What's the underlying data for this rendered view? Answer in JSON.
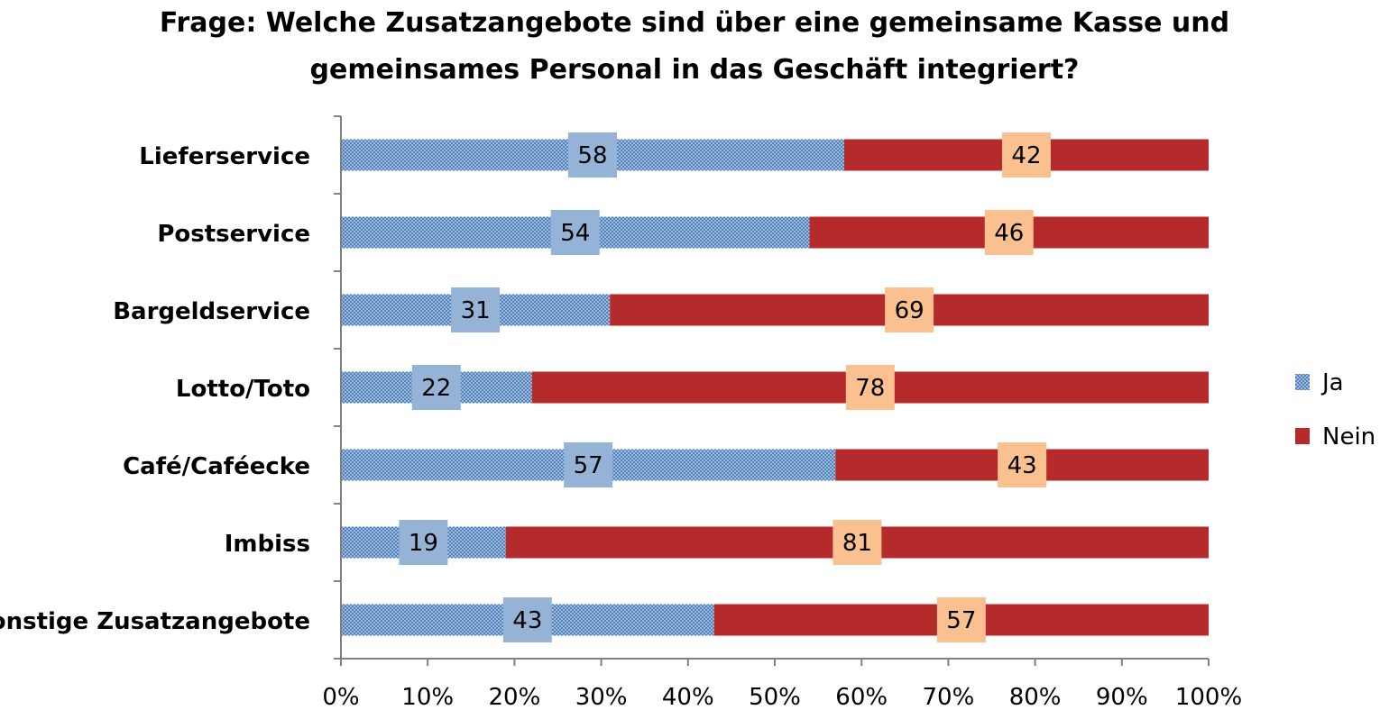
{
  "chart_data": {
    "type": "bar",
    "orientation": "horizontal",
    "stacked": true,
    "title": "Frage: Welche Zusatzangebote sind über eine gemeinsame Kasse und gemeinsames Personal in das Geschäft integriert?",
    "categories": [
      "Lieferservice",
      "Postservice",
      "Bargeldservice",
      "Lotto/Toto",
      "Café/Caféecke",
      "Imbiss",
      "Sonstige Zusatzangebote"
    ],
    "series": [
      {
        "name": "Ja",
        "values": [
          58,
          54,
          31,
          22,
          57,
          19,
          43
        ],
        "color": "#4f81bd",
        "label_bg": "#95b3d7"
      },
      {
        "name": "Nein",
        "values": [
          42,
          46,
          69,
          78,
          43,
          81,
          57
        ],
        "color": "#b52a2a",
        "label_bg": "#fac090"
      }
    ],
    "xlim": [
      0,
      100
    ],
    "xticks": [
      "0%",
      "10%",
      "20%",
      "30%",
      "40%",
      "50%",
      "60%",
      "70%",
      "80%",
      "90%",
      "100%"
    ],
    "legend_position": "right",
    "grid": false
  }
}
